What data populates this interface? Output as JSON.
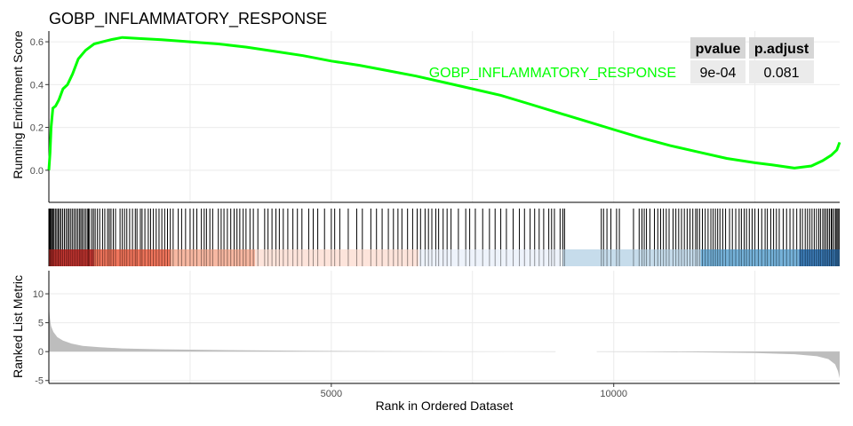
{
  "chart_data": {
    "type": "line",
    "title": "GOBP_INFLAMMATORY_RESPONSE",
    "gene_set": "GOBP_INFLAMMATORY_RESPONSE",
    "line_color": "#00ff00",
    "es_panel": {
      "ylabel": "Running Enrichment Score",
      "ylim": [
        -0.15,
        0.65
      ],
      "yticks": [
        0.0,
        0.2,
        0.4,
        0.6
      ],
      "ytick_labels": [
        "0.0",
        "0.2",
        "0.4",
        "0.6"
      ],
      "curve": [
        [
          0,
          0.0
        ],
        [
          20,
          0.08
        ],
        [
          40,
          0.2
        ],
        [
          70,
          0.29
        ],
        [
          120,
          0.3
        ],
        [
          180,
          0.33
        ],
        [
          250,
          0.38
        ],
        [
          330,
          0.4
        ],
        [
          420,
          0.45
        ],
        [
          520,
          0.52
        ],
        [
          650,
          0.56
        ],
        [
          800,
          0.59
        ],
        [
          950,
          0.6
        ],
        [
          1100,
          0.61
        ],
        [
          1300,
          0.62
        ],
        [
          1600,
          0.615
        ],
        [
          2000,
          0.61
        ],
        [
          2500,
          0.6
        ],
        [
          3000,
          0.59
        ],
        [
          3500,
          0.575
        ],
        [
          4000,
          0.555
        ],
        [
          4500,
          0.535
        ],
        [
          5000,
          0.51
        ],
        [
          5500,
          0.49
        ],
        [
          6000,
          0.465
        ],
        [
          6500,
          0.44
        ],
        [
          7000,
          0.41
        ],
        [
          7500,
          0.38
        ],
        [
          8000,
          0.35
        ],
        [
          8500,
          0.31
        ],
        [
          9000,
          0.27
        ],
        [
          9500,
          0.23
        ],
        [
          10000,
          0.19
        ],
        [
          10500,
          0.15
        ],
        [
          11000,
          0.115
        ],
        [
          11500,
          0.085
        ],
        [
          12000,
          0.055
        ],
        [
          12500,
          0.035
        ],
        [
          12800,
          0.025
        ],
        [
          13200,
          0.01
        ],
        [
          13500,
          0.02
        ],
        [
          13700,
          0.045
        ],
        [
          13850,
          0.07
        ],
        [
          13950,
          0.095
        ],
        [
          14000,
          0.13
        ]
      ]
    },
    "stats_table": {
      "headers": [
        "pvalue",
        "p.adjust"
      ],
      "rows": [
        [
          "9e-04",
          "0.081"
        ]
      ]
    },
    "rank_panel": {
      "ylabel": "Ranked List Metric",
      "ylim": [
        -5.5,
        14
      ],
      "yticks": [
        -5,
        0,
        5,
        10
      ],
      "ytick_labels": [
        "-5",
        "0",
        "5",
        "10"
      ],
      "metric_curve": [
        [
          0,
          8.0
        ],
        [
          15,
          6.0
        ],
        [
          40,
          4.4
        ],
        [
          80,
          3.4
        ],
        [
          150,
          2.5
        ],
        [
          250,
          1.9
        ],
        [
          400,
          1.4
        ],
        [
          600,
          1.0
        ],
        [
          900,
          0.75
        ],
        [
          1300,
          0.55
        ],
        [
          2000,
          0.4
        ],
        [
          3000,
          0.27
        ],
        [
          4500,
          0.15
        ],
        [
          6000,
          0.06
        ],
        [
          7500,
          0.02
        ],
        [
          8800,
          0.0
        ],
        [
          9600,
          -0.02
        ],
        [
          10500,
          -0.05
        ],
        [
          11500,
          -0.12
        ],
        [
          12500,
          -0.25
        ],
        [
          13200,
          -0.45
        ],
        [
          13600,
          -0.8
        ],
        [
          13800,
          -1.3
        ],
        [
          13920,
          -2.2
        ],
        [
          13970,
          -3.4
        ],
        [
          14000,
          -4.6
        ]
      ],
      "gap": [
        8970,
        9700
      ]
    },
    "xaxis": {
      "xlabel": "Rank in Ordered Dataset",
      "xlim": [
        0,
        14000
      ],
      "xticks": [
        5000,
        10000
      ],
      "xtick_labels": [
        "5000",
        "10000"
      ],
      "gridlines": [
        2500,
        5000,
        7500,
        10000,
        12500
      ]
    },
    "hit_positions": [
      0,
      10,
      22,
      35,
      50,
      70,
      90,
      115,
      140,
      165,
      190,
      215,
      245,
      275,
      305,
      335,
      360,
      390,
      420,
      450,
      480,
      510,
      540,
      565,
      590,
      620,
      650,
      680,
      700,
      720,
      760,
      790,
      820,
      860,
      900,
      950,
      990,
      1040,
      1070,
      1100,
      1140,
      1180,
      1260,
      1300,
      1340,
      1380,
      1430,
      1480,
      1530,
      1560,
      1620,
      1650,
      1700,
      1760,
      1800,
      1850,
      1900,
      1950,
      2000,
      2050,
      2100,
      2150,
      2200,
      2290,
      2350,
      2420,
      2500,
      2560,
      2620,
      2700,
      2750,
      2790,
      2850,
      2900,
      3000,
      3050,
      3100,
      3160,
      3220,
      3280,
      3330,
      3380,
      3440,
      3490,
      3560,
      3620,
      3700,
      3820,
      3880,
      3950,
      4020,
      4080,
      4150,
      4230,
      4320,
      4400,
      4480,
      4600,
      4680,
      4760,
      4880,
      5000,
      5060,
      5150,
      5300,
      5450,
      5550,
      5700,
      5800,
      5900,
      6010,
      6100,
      6180,
      6250,
      6350,
      6440,
      6520,
      6580,
      6660,
      6720,
      6780,
      6850,
      6900,
      6980,
      7050,
      7120,
      7250,
      7380,
      7450,
      7550,
      7680,
      7800,
      7900,
      8000,
      8100,
      8220,
      8330,
      8420,
      8520,
      8600,
      8680,
      8760,
      8850,
      8900,
      8950,
      9050,
      9100,
      9130,
      9780,
      9820,
      9880,
      9950,
      10050,
      10100,
      10350,
      10450,
      10500,
      10540,
      10580,
      10640,
      10720,
      10780,
      10830,
      10880,
      10930,
      10980,
      11050,
      11100,
      11150,
      11200,
      11250,
      11300,
      11350,
      11400,
      11450,
      11480,
      11520,
      11570,
      11620,
      11670,
      11720,
      11760,
      11800,
      11840,
      11880,
      11930,
      11980,
      12050,
      12100,
      12160,
      12220,
      12260,
      12310,
      12350,
      12400,
      12450,
      12500,
      12560,
      12620,
      12680,
      12720,
      12780,
      12830,
      12880,
      12930,
      13000,
      13060,
      13120,
      13180,
      13240,
      13300,
      13340,
      13390,
      13430,
      13470,
      13510,
      13550,
      13590,
      13630,
      13660,
      13700,
      13730,
      13760,
      13790,
      13820,
      13850,
      13870,
      13900,
      13930,
      13950,
      13970,
      13990
    ],
    "color_bar": [
      {
        "from": 0,
        "to": 800,
        "color": "#cb2e28"
      },
      {
        "from": 800,
        "to": 2150,
        "color": "#ef6a4f"
      },
      {
        "from": 2150,
        "to": 3650,
        "color": "#f6b29a"
      },
      {
        "from": 3650,
        "to": 6550,
        "color": "#fde2d8"
      },
      {
        "from": 6550,
        "to": 9100,
        "color": "#edf2fb"
      },
      {
        "from": 9100,
        "to": 11540,
        "color": "#c1d9e9"
      },
      {
        "from": 11540,
        "to": 13280,
        "color": "#6aabd6"
      },
      {
        "from": 13280,
        "to": 14000,
        "color": "#2f73b3"
      }
    ]
  }
}
